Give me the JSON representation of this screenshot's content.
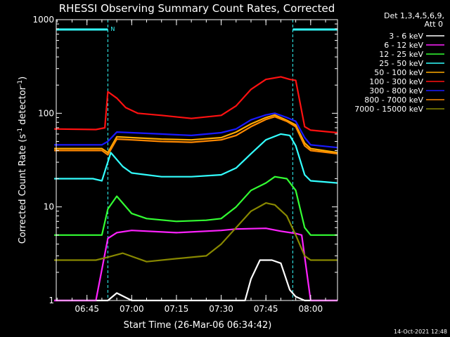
{
  "chart_data": {
    "type": "line",
    "title": "RHESSI Observing Summary Count Rates, Corrected",
    "xlabel": "Start Time (26-Mar-06 06:34:42)",
    "ylabel": "Corrected Count Rate (s⁻¹ detector⁻¹)",
    "ylabel_base": "Corrected Count Rate (s",
    "ylabel_sup1": "-1",
    "ylabel_mid": " detector",
    "ylabel_sup2": "-1",
    "ylabel_end": ")",
    "yscale": "log",
    "ylim": [
      1,
      1000
    ],
    "xlim": [
      "06:34:42",
      "08:09:00"
    ],
    "x_ticks": [
      "06:45",
      "07:00",
      "07:15",
      "07:30",
      "07:45",
      "08:00"
    ],
    "y_ticks": [
      "1",
      "10",
      "100",
      "1000"
    ],
    "legend_title": [
      "Det 1,3,4,5,6,9,",
      "Att 0"
    ],
    "legend_position": "right",
    "footer_date": "14-Oct-2021 12:48",
    "night_marker": "N",
    "night_intervals": [
      [
        "06:34:42",
        "06:52:00"
      ],
      [
        "07:54:00",
        "08:09:00"
      ]
    ],
    "series": [
      {
        "name": "3 - 6 keV",
        "color": "#ffffff",
        "x": [
          "06:34",
          "06:52",
          "06:55",
          "07:00",
          "07:38",
          "07:40",
          "07:43",
          "07:47",
          "07:50",
          "07:53",
          "07:55",
          "07:58",
          "08:00",
          "08:09"
        ],
        "y": [
          1.0,
          1.0,
          1.2,
          1.0,
          1.0,
          1.7,
          2.7,
          2.7,
          2.5,
          1.3,
          1.1,
          1.0,
          1.0,
          1.0
        ]
      },
      {
        "name": "6 - 12 keV",
        "color": "#ff22ff",
        "x": [
          "06:34",
          "06:48",
          "06:52",
          "06:55",
          "07:00",
          "07:15",
          "07:30",
          "07:35",
          "07:45",
          "07:50",
          "07:55",
          "07:57",
          "08:00",
          "08:09"
        ],
        "y": [
          1.0,
          1.0,
          4.6,
          5.3,
          5.6,
          5.3,
          5.6,
          5.8,
          5.9,
          5.5,
          5.2,
          5.0,
          1.0,
          1.0
        ]
      },
      {
        "name": "12 - 25 keV",
        "color": "#33ff33",
        "x": [
          "06:34",
          "06:47",
          "06:50",
          "06:52",
          "06:55",
          "07:00",
          "07:05",
          "07:15",
          "07:25",
          "07:30",
          "07:35",
          "07:40",
          "07:45",
          "07:48",
          "07:52",
          "07:55",
          "07:58",
          "08:00",
          "08:09"
        ],
        "y": [
          5.0,
          5.0,
          5.0,
          9.5,
          13,
          8.5,
          7.5,
          7.0,
          7.2,
          7.5,
          10,
          15,
          18,
          21,
          20,
          15,
          6.0,
          5.0,
          5.0
        ]
      },
      {
        "name": "25 - 50 keV",
        "color": "#33ffff",
        "x": [
          "06:34",
          "06:47",
          "06:50",
          "06:53",
          "06:57",
          "07:00",
          "07:10",
          "07:20",
          "07:30",
          "07:35",
          "07:40",
          "07:45",
          "07:50",
          "07:53",
          "07:55",
          "07:58",
          "08:00",
          "08:09"
        ],
        "y": [
          20,
          20,
          19,
          38,
          27,
          23,
          21,
          21,
          22,
          26,
          37,
          52,
          60,
          58,
          45,
          22,
          19,
          18
        ]
      },
      {
        "name": "50 - 100 keV",
        "color": "#ffaa00",
        "x": [
          "06:34",
          "06:50",
          "06:52",
          "06:55",
          "07:00",
          "07:10",
          "07:20",
          "07:30",
          "07:35",
          "07:40",
          "07:45",
          "07:48",
          "07:52",
          "07:55",
          "07:58",
          "08:00",
          "08:09"
        ],
        "y": [
          42,
          42,
          38,
          56,
          55,
          53,
          52,
          55,
          63,
          77,
          90,
          96,
          84,
          75,
          48,
          42,
          38
        ]
      },
      {
        "name": "100 - 300 keV",
        "color": "#ff1111",
        "x": [
          "06:34",
          "06:48",
          "06:51",
          "06:52",
          "06:55",
          "06:58",
          "07:02",
          "07:10",
          "07:20",
          "07:30",
          "07:35",
          "07:40",
          "07:45",
          "07:50",
          "07:53",
          "07:55",
          "07:58",
          "08:00",
          "08:09"
        ],
        "y": [
          68,
          67,
          70,
          170,
          145,
          115,
          100,
          95,
          88,
          95,
          120,
          180,
          230,
          245,
          230,
          225,
          72,
          66,
          62
        ]
      },
      {
        "name": "300 - 800 keV",
        "color": "#1a1aff",
        "x": [
          "06:34",
          "06:50",
          "06:52",
          "06:55",
          "07:00",
          "07:10",
          "07:20",
          "07:30",
          "07:35",
          "07:40",
          "07:45",
          "07:48",
          "07:52",
          "07:55",
          "07:58",
          "08:00",
          "08:09"
        ],
        "y": [
          46,
          46,
          50,
          63,
          62,
          60,
          58,
          62,
          68,
          85,
          96,
          100,
          90,
          82,
          55,
          46,
          43
        ]
      },
      {
        "name": "800 - 7000 keV",
        "color": "#ff8800",
        "x": [
          "06:34",
          "06:50",
          "06:52",
          "06:55",
          "07:00",
          "07:10",
          "07:20",
          "07:30",
          "07:35",
          "07:40",
          "07:45",
          "07:48",
          "07:52",
          "07:55",
          "07:58",
          "08:00",
          "08:09"
        ],
        "y": [
          40,
          40,
          36,
          53,
          52,
          50,
          49,
          52,
          58,
          72,
          86,
          92,
          82,
          72,
          45,
          40,
          37
        ]
      },
      {
        "name": "7000 - 15000 keV",
        "color": "#888800",
        "x": [
          "06:34",
          "06:48",
          "06:52",
          "06:57",
          "07:05",
          "07:15",
          "07:25",
          "07:30",
          "07:35",
          "07:40",
          "07:45",
          "07:48",
          "07:52",
          "07:55",
          "07:58",
          "08:00",
          "08:09"
        ],
        "y": [
          2.7,
          2.7,
          2.9,
          3.2,
          2.6,
          2.8,
          3.0,
          4.0,
          6.0,
          9.0,
          11,
          10.5,
          8.0,
          5.0,
          3.0,
          2.7,
          2.7
        ]
      }
    ]
  }
}
